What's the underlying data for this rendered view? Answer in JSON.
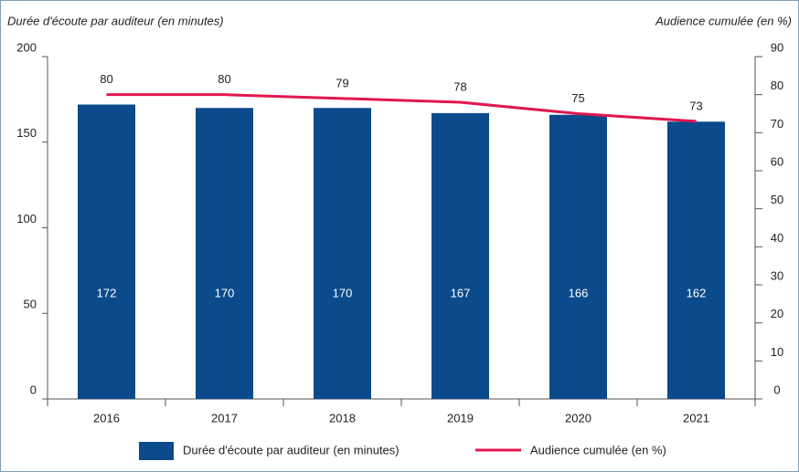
{
  "chart_data": {
    "type": "bar",
    "y_label": "Durée d'écoute par auditeur (en minutes)",
    "y2_label": "Audience cumulée (en %)",
    "categories": [
      "2016",
      "2017",
      "2018",
      "2019",
      "2020",
      "2021"
    ],
    "series": [
      {
        "name": "Durée d'écoute par auditeur (en minutes)",
        "type": "bar",
        "color": "#0b4a8b",
        "values": [
          172,
          170,
          170,
          167,
          166,
          162
        ]
      },
      {
        "name": "Audience cumulée (en %)",
        "type": "line",
        "axis": "y2",
        "color": "#e0174d",
        "values": [
          80,
          80,
          79,
          78,
          75,
          73
        ]
      }
    ],
    "ylim": [
      0,
      200
    ],
    "yticks": [
      0,
      50,
      100,
      150,
      200
    ],
    "y2lim": [
      0,
      90
    ],
    "y2ticks": [
      0,
      10,
      20,
      30,
      40,
      50,
      60,
      70,
      80,
      90
    ],
    "grid": false,
    "legend": "bottom"
  }
}
